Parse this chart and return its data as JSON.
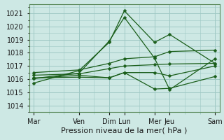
{
  "background_color": "#cde8e4",
  "grid_color": "#9ec8c4",
  "line_color": "#1a5e1a",
  "xlabel": "Pression niveau de la mer( hPa )",
  "xlabel_fontsize": 8,
  "tick_fontsize": 7,
  "ylim": [
    1013.5,
    1021.7
  ],
  "yticks": [
    1014,
    1015,
    1016,
    1017,
    1018,
    1019,
    1020,
    1021
  ],
  "xlabels": [
    "Mar",
    "Ven",
    "Dim",
    "Lun",
    "Mer",
    "Jeu",
    "Sam"
  ],
  "xtick_positions": [
    0,
    3,
    5,
    6,
    8,
    9,
    12
  ],
  "xmin": -0.3,
  "xmax": 12.3,
  "series": [
    {
      "x": [
        0,
        3,
        5,
        6,
        8,
        9,
        12
      ],
      "y": [
        1015.7,
        1016.65,
        1018.8,
        1021.2,
        1018.8,
        1019.4,
        1017.2
      ]
    },
    {
      "x": [
        0,
        3,
        5,
        6,
        8,
        9,
        12
      ],
      "y": [
        1016.05,
        1016.45,
        1018.9,
        1020.7,
        1017.6,
        1015.2,
        1017.55
      ]
    },
    {
      "x": [
        0,
        3,
        5,
        6,
        8,
        9,
        12
      ],
      "y": [
        1016.1,
        1016.15,
        1016.1,
        1016.5,
        1016.5,
        1016.25,
        1017.0
      ]
    },
    {
      "x": [
        0,
        3,
        5,
        6,
        8,
        9,
        12
      ],
      "y": [
        1016.3,
        1016.4,
        1016.8,
        1017.0,
        1017.1,
        1017.15,
        1017.2
      ]
    },
    {
      "x": [
        0,
        3,
        5,
        6,
        8,
        9,
        12
      ],
      "y": [
        1016.5,
        1016.7,
        1017.2,
        1017.55,
        1017.7,
        1018.1,
        1018.2
      ]
    },
    {
      "x": [
        0,
        3,
        5,
        6,
        8,
        9,
        12
      ],
      "y": [
        1016.05,
        1016.3,
        1016.1,
        1016.5,
        1015.25,
        1015.3,
        1016.2
      ]
    }
  ]
}
